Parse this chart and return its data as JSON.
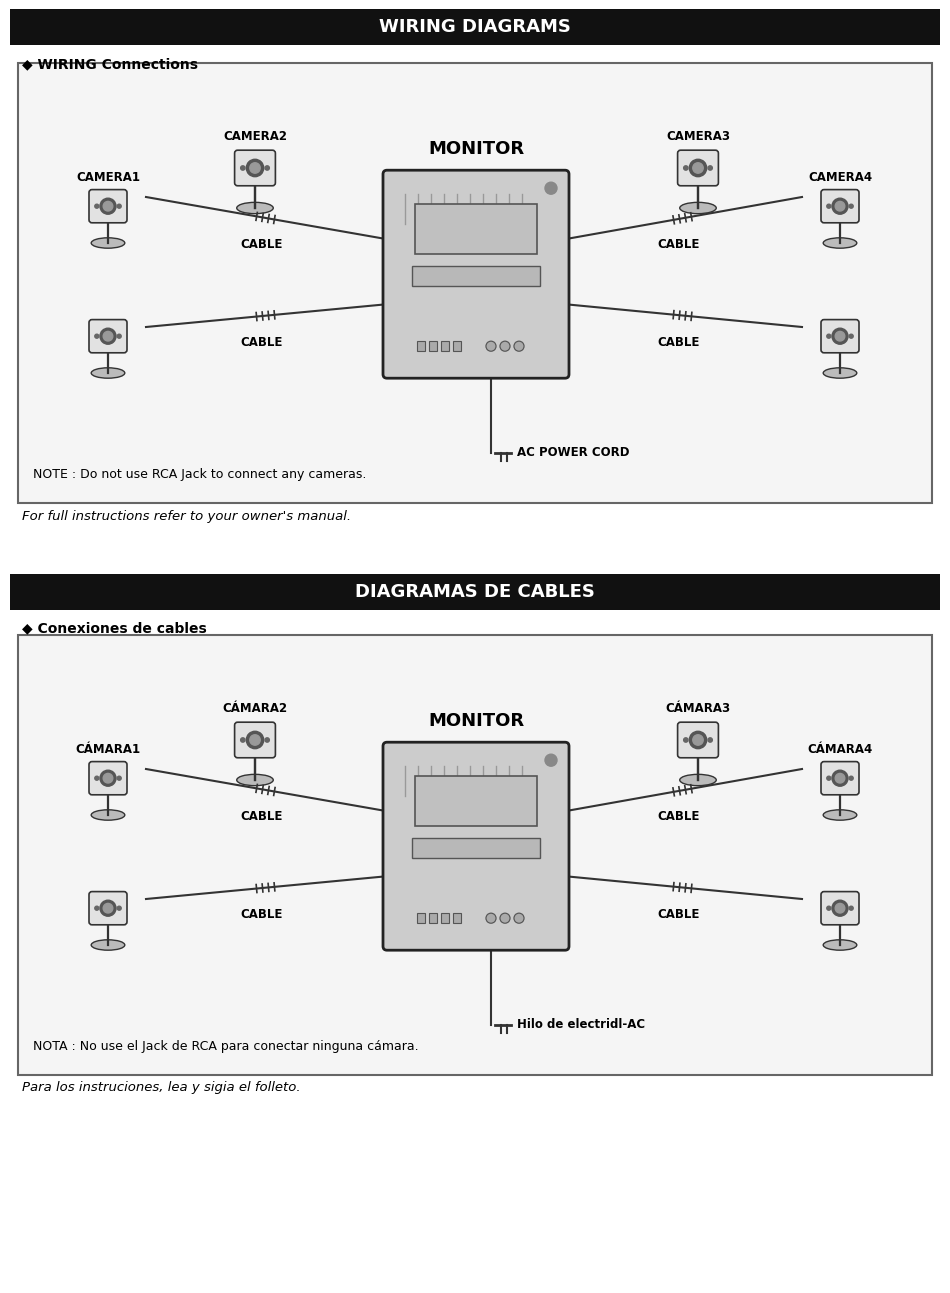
{
  "bg_color": "#ffffff",
  "header1_text": "WIRING DIAGRAMS",
  "header1_bg": "#111111",
  "header1_fg": "#ffffff",
  "section1_label": "◆ WIRING Connections",
  "note1": "NOTE : Do not use RCA Jack to connect any cameras.",
  "footer1": "For full instructions refer to your owner's manual.",
  "header2_text": "DIAGRAMAS DE CABLES",
  "header2_bg": "#111111",
  "header2_fg": "#ffffff",
  "section2_label": "◆ Conexiones de cables",
  "note2": "NOTA : No use el Jack de RCA para conectar ninguna cámara.",
  "footer2": "Para los instruciones, lea y sigia el folleto.",
  "monitor_label": "MONITOR",
  "cam_labels_en": [
    "CAMERA1",
    "CAMERA2",
    "CAMERA3",
    "CAMERA4"
  ],
  "cam_labels_es": [
    "CÁMARA1",
    "CÁMARA2",
    "CÁMARA3",
    "CÁMARA4"
  ],
  "cable_label": "CABLE",
  "power_label": "AC POWER CORD",
  "power_label_es": "Hilo de electridl-AC"
}
